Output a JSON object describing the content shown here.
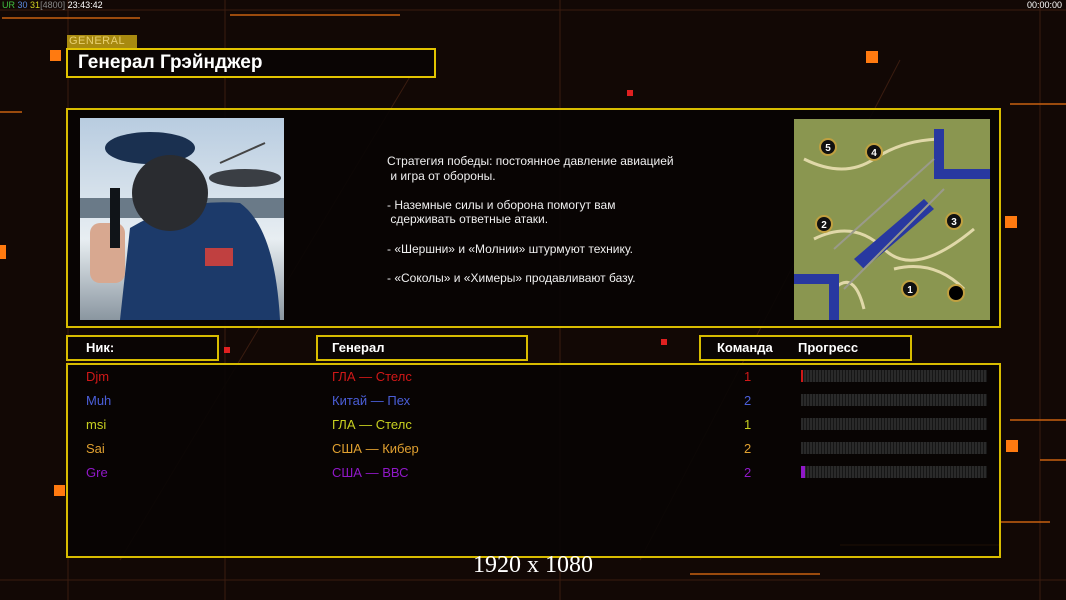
{
  "status_bar": {
    "ur": "UR",
    "v1": "30",
    "v2": "31",
    "bracket": "[4800]",
    "time": "23:43:42",
    "clock": "00:00:00"
  },
  "general": {
    "tag": "GENERAL",
    "name": "Генерал Грэйнджер",
    "description": "Стратегия победы: постоянное давление авиацией\n и игра от обороны.\n\n- Наземные силы и оборона помогут вам\n сдерживать ответные атаки.\n\n- «Шершни» и «Молнии» штурмуют технику.\n\n- «Соколы» и «Химеры» продавливают базу.",
    "map_markers": [
      "1",
      "2",
      "3",
      "4",
      "5"
    ]
  },
  "table": {
    "headers": {
      "nick": "Ник:",
      "general": "Генерал",
      "team": "Команда",
      "progress": "Прогресс"
    },
    "rows": [
      {
        "nick": "Djm",
        "general": "ГЛА — Стелс",
        "team": "1",
        "progress": 1,
        "color": "#d01818"
      },
      {
        "nick": "Muh",
        "general": "Китай — Пех",
        "team": "2",
        "progress": 0,
        "color": "#4a5ed8"
      },
      {
        "nick": "msi",
        "general": "ГЛА — Стелс",
        "team": "1",
        "progress": 0,
        "color": "#c8d020"
      },
      {
        "nick": "Sai",
        "general": "США — Кибер",
        "team": "2",
        "progress": 0,
        "color": "#e0a030"
      },
      {
        "nick": "Gre",
        "general": "США — ВВС",
        "team": "2",
        "progress": 2,
        "color": "#9018c8"
      }
    ]
  },
  "resolution": "1920 x 1080",
  "colors": {
    "accent": "#d8bc00",
    "background": "#120805",
    "orange": "#ff7a10"
  }
}
